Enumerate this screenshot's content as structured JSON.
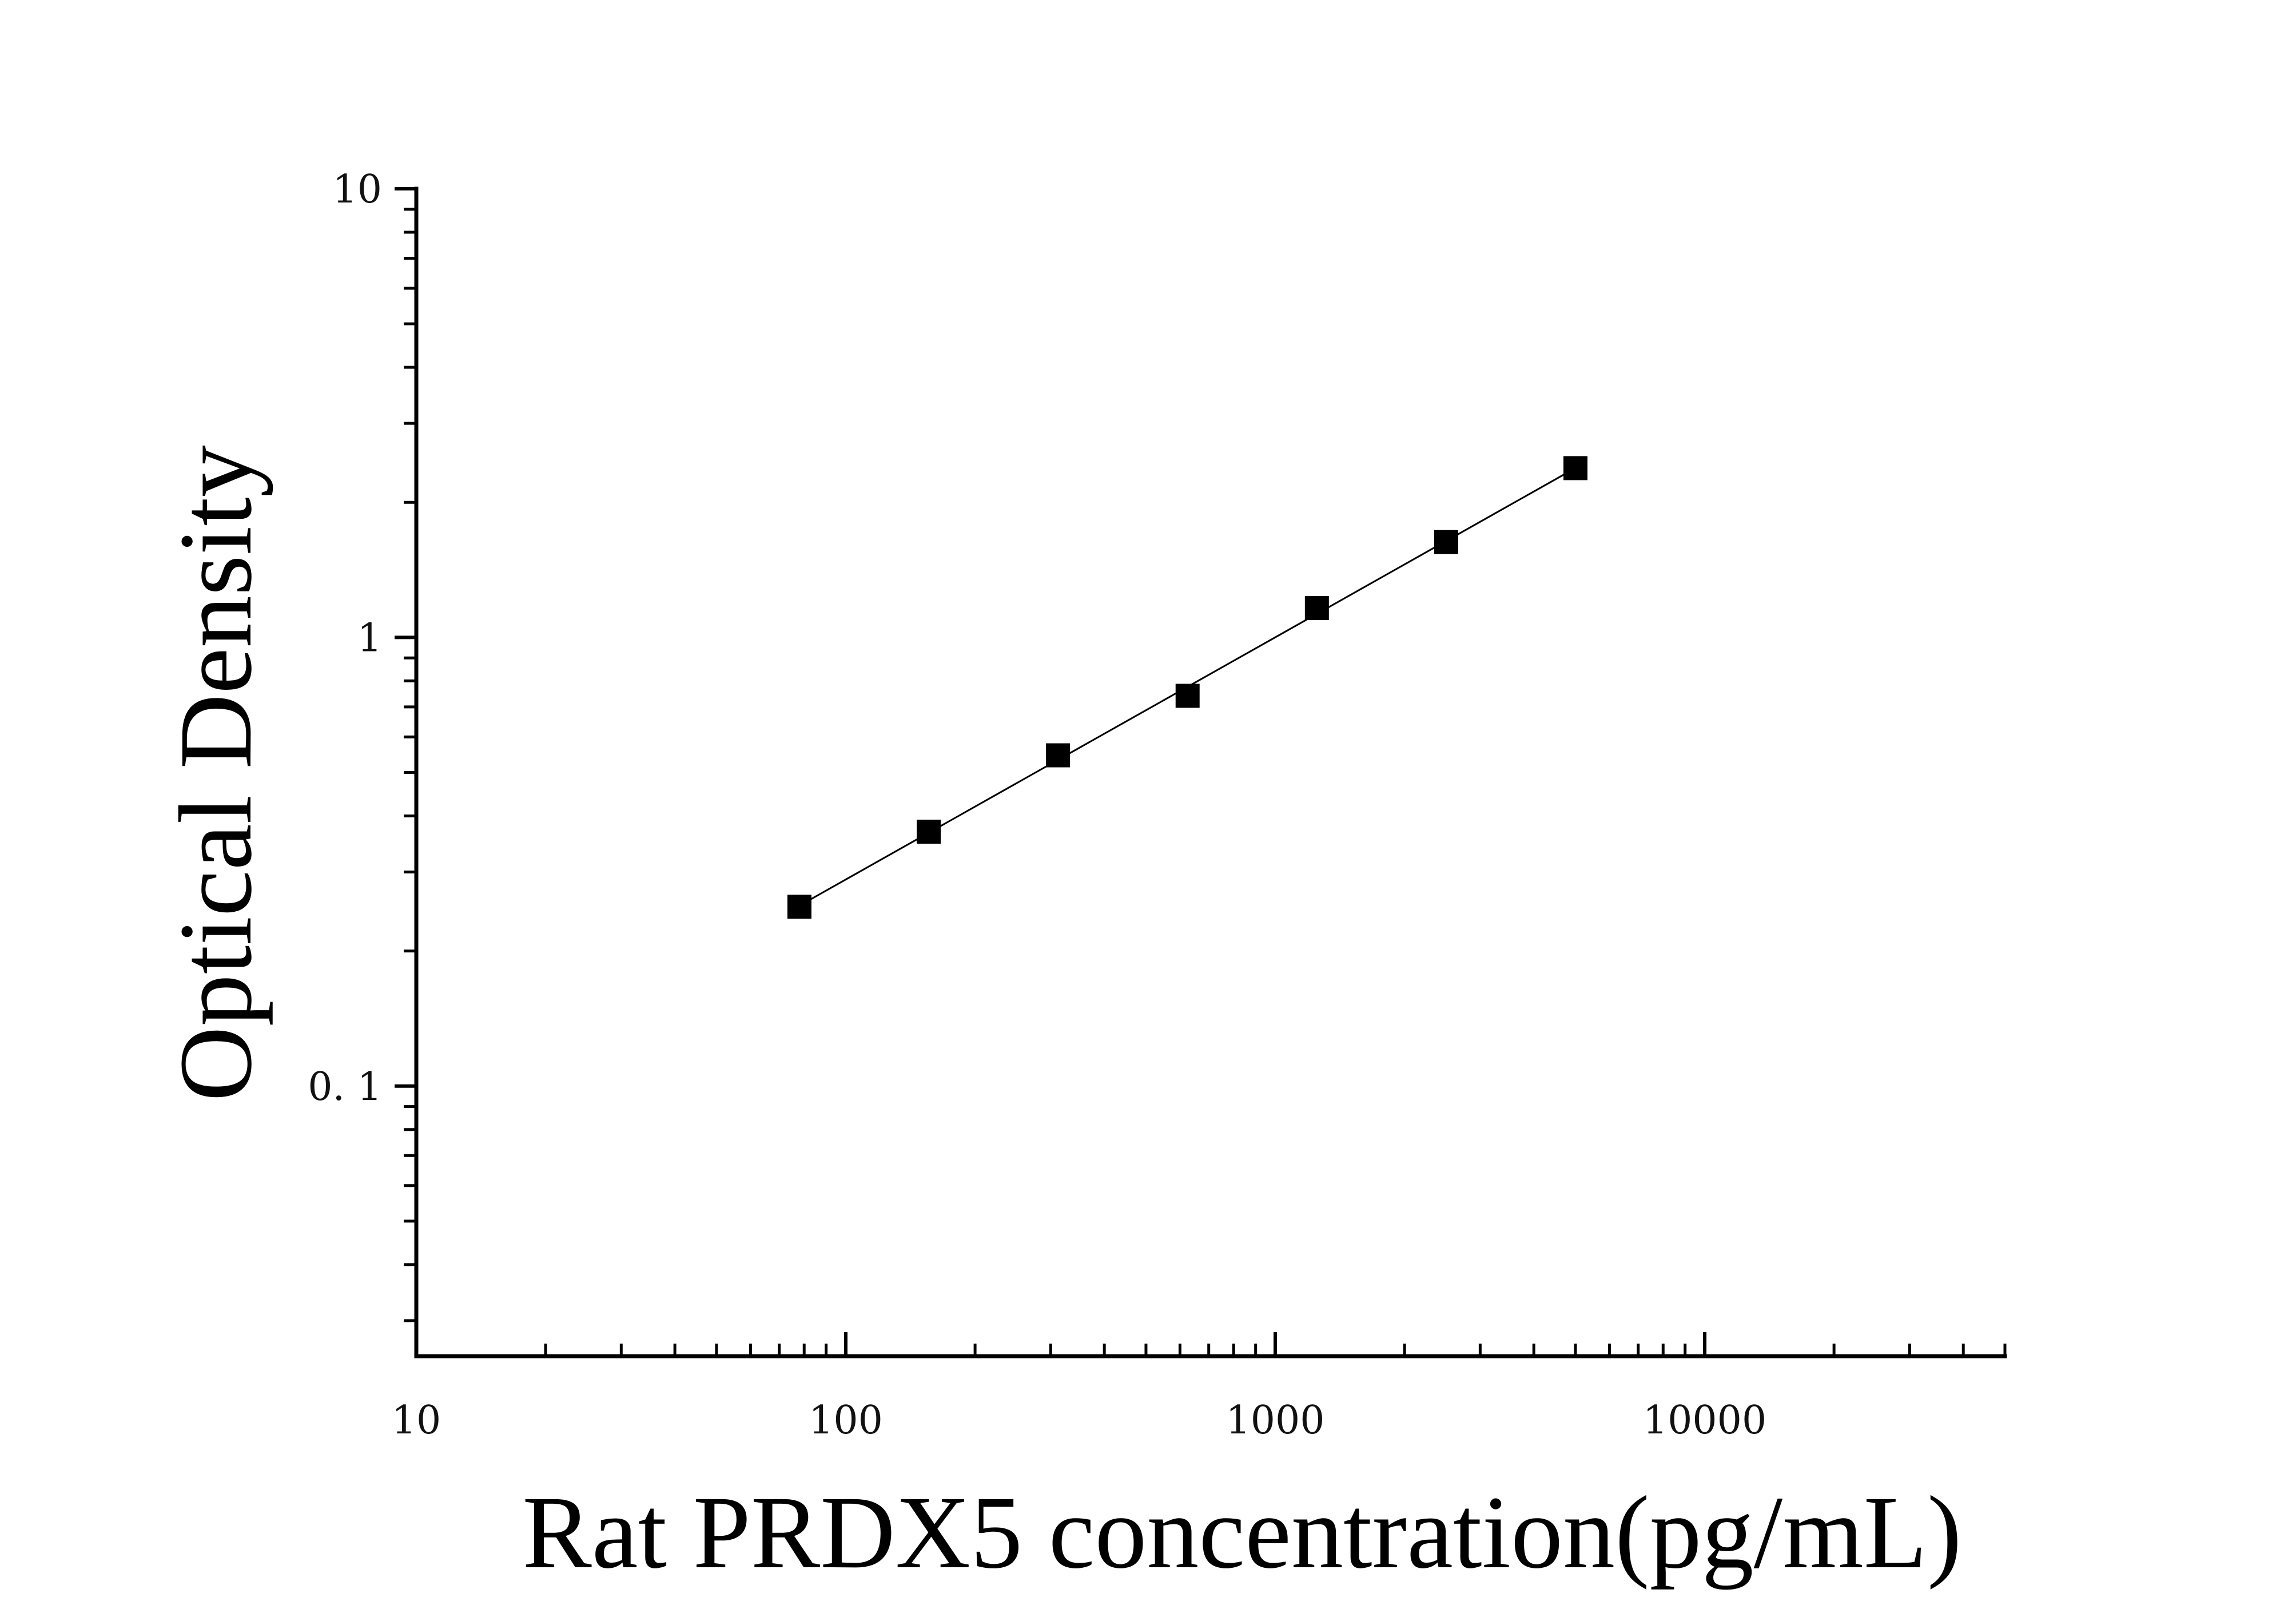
{
  "chart_data": {
    "type": "scatter",
    "title": "",
    "xlabel": "Rat PRDX5 concentration(pg/mL)",
    "ylabel": "Optical Density",
    "x_scale": "log",
    "y_scale": "log",
    "xlim": [
      10,
      50000
    ],
    "ylim": [
      0.025,
      10
    ],
    "x_ticks": [
      {
        "value": 10,
        "label": "10"
      },
      {
        "value": 100,
        "label": "100"
      },
      {
        "value": 1000,
        "label": "1000"
      },
      {
        "value": 10000,
        "label": "10000"
      }
    ],
    "y_ticks": [
      {
        "value": 10,
        "label": "10"
      },
      {
        "value": 1,
        "label": "1"
      },
      {
        "value": 0.1,
        "label": "0. 1"
      }
    ],
    "grid": false,
    "legend": "none",
    "series": [
      {
        "marker": "square",
        "color": "#000000",
        "line": "fit",
        "points": [
          {
            "x": 78,
            "y": 0.251
          },
          {
            "x": 156,
            "y": 0.369
          },
          {
            "x": 312,
            "y": 0.546
          },
          {
            "x": 625,
            "y": 0.741
          },
          {
            "x": 1250,
            "y": 1.163
          },
          {
            "x": 2500,
            "y": 1.631
          },
          {
            "x": 5000,
            "y": 2.384
          }
        ]
      }
    ]
  }
}
